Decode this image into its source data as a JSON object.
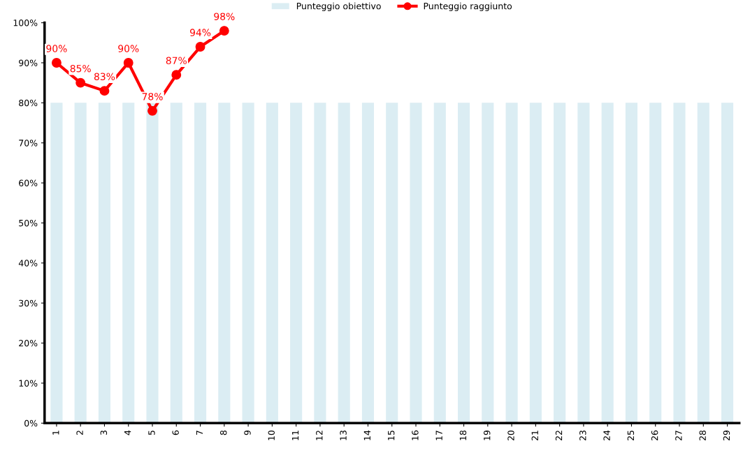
{
  "chart_data": {
    "type": "bar",
    "categories": [
      "1",
      "2",
      "3",
      "4",
      "5",
      "6",
      "7",
      "8",
      "9",
      "10",
      "11",
      "12",
      "13",
      "14",
      "15",
      "16",
      "17",
      "18",
      "19",
      "20",
      "21",
      "22",
      "23",
      "24",
      "25",
      "26",
      "27",
      "28",
      "29"
    ],
    "series": [
      {
        "name": "Punteggio obiettivo",
        "color": "#dbedf3",
        "values": [
          80,
          80,
          80,
          80,
          80,
          80,
          80,
          80,
          80,
          80,
          80,
          80,
          80,
          80,
          80,
          80,
          80,
          80,
          80,
          80,
          80,
          80,
          80,
          80,
          80,
          80,
          80,
          80,
          80
        ]
      },
      {
        "name": "Punteggio raggiunto",
        "type": "line",
        "color": "#ff0000",
        "marker": "circle",
        "values": [
          90,
          85,
          83,
          90,
          78,
          87,
          94,
          98,
          null,
          null,
          null,
          null,
          null,
          null,
          null,
          null,
          null,
          null,
          null,
          null,
          null,
          null,
          null,
          null,
          null,
          null,
          null,
          null,
          null
        ],
        "value_labels": [
          "90%",
          "85%",
          "83%",
          "90%",
          "78%",
          "87%",
          "94%",
          "98%",
          null,
          null,
          null,
          null,
          null,
          null,
          null,
          null,
          null,
          null,
          null,
          null,
          null,
          null,
          null,
          null,
          null,
          null,
          null,
          null,
          null
        ]
      }
    ],
    "ylim": [
      0,
      100
    ],
    "yticks": [
      {
        "value": 0,
        "label": "0%"
      },
      {
        "value": 10,
        "label": "10%"
      },
      {
        "value": 20,
        "label": "20%"
      },
      {
        "value": 30,
        "label": "30%"
      },
      {
        "value": 40,
        "label": "40%"
      },
      {
        "value": 50,
        "label": "50%"
      },
      {
        "value": 60,
        "label": "60%"
      },
      {
        "value": 70,
        "label": "70%"
      },
      {
        "value": 80,
        "label": "80%"
      },
      {
        "value": 90,
        "label": "90%"
      },
      {
        "value": 100,
        "label": "100%"
      }
    ],
    "grid": false,
    "legend": "top"
  }
}
